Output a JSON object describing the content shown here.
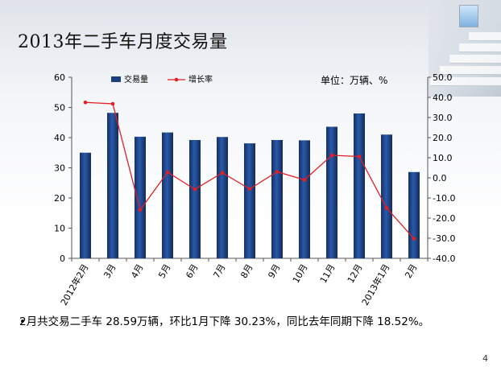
{
  "slide": {
    "title": "2013年二手车月度交易量",
    "unit_label": "单位：万辆、%",
    "bullet_text": "2月共交易二手车 28.59万辆，环比1月下降 30.23%，同比去年同期下降 18.52%。",
    "page_number": "4"
  },
  "chart_data": {
    "type": "bar+line",
    "categories": [
      "2012年2月",
      "3月",
      "4月",
      "5月",
      "6月",
      "7月",
      "8月",
      "9月",
      "10月",
      "11月",
      "12月",
      "2013年1月",
      "2月"
    ],
    "series": [
      {
        "name": "交易量",
        "type": "bar",
        "axis": "left",
        "color": "#1c3f7d",
        "values": [
          35,
          48.2,
          40.3,
          41.7,
          39.2,
          40.2,
          38.1,
          39.2,
          39.1,
          43.6,
          48,
          41,
          28.59
        ]
      },
      {
        "name": "增长率",
        "type": "line",
        "axis": "right",
        "color": "#e31e24",
        "values": [
          37.5,
          36.8,
          -16,
          2.8,
          -5.7,
          2.5,
          -5.5,
          3,
          -1,
          11.2,
          10.6,
          -15,
          -30.23
        ]
      }
    ],
    "left_axis": {
      "ylim": [
        0,
        60
      ],
      "ticks": [
        "0",
        "10",
        "20",
        "30",
        "40",
        "50",
        "60"
      ]
    },
    "right_axis": {
      "ylim": [
        -40,
        50
      ],
      "ticks": [
        "-40.0",
        "-30.0",
        "-20.0",
        "-10.0",
        "0.0",
        "10.0",
        "20.0",
        "30.0",
        "40.0",
        "50.0"
      ]
    },
    "legend_position": "top-left",
    "grid": false
  }
}
